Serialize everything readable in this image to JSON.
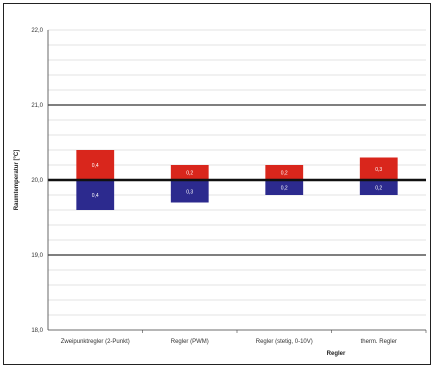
{
  "chart_data": {
    "type": "bar",
    "ylabel": "Raumtemperatur [°C]",
    "xlabel": "Regler",
    "ylim": [
      18.0,
      22.0
    ],
    "y_tick_labels": [
      "18,0",
      "19,0",
      "20,0",
      "21,0",
      "22,0"
    ],
    "reference_line": 20.0,
    "major_lines": [
      19.0,
      21.0
    ],
    "grid": true,
    "categories": [
      "Zweipunktregler (2-Punkt)",
      "Regler (PWM)",
      "Regler (stetig, 0-10V)",
      "therm. Regler"
    ],
    "series": [
      {
        "values": [
          0.4,
          0.2,
          0.2,
          0.3
        ],
        "labels": [
          "0,4",
          "0,2",
          "0,2",
          "0,3"
        ],
        "color": "#d9261c"
      },
      {
        "values": [
          -0.4,
          -0.3,
          -0.2,
          -0.2
        ],
        "labels": [
          "0,4",
          "0,3",
          "0,2",
          "0,2"
        ],
        "color": "#2c2a8e"
      }
    ]
  }
}
